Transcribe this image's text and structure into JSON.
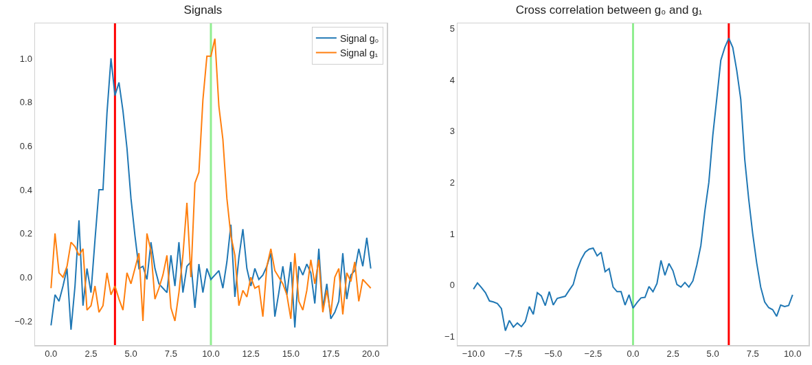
{
  "chart_data": [
    {
      "type": "line",
      "title": "Signals",
      "legend": "top right",
      "grid": false,
      "x": [
        0,
        0.25,
        0.5,
        0.75,
        1,
        1.25,
        1.5,
        1.75,
        2,
        2.25,
        2.5,
        2.75,
        3,
        3.25,
        3.5,
        3.75,
        4,
        4.25,
        4.5,
        4.75,
        5,
        5.25,
        5.5,
        5.75,
        6,
        6.25,
        6.5,
        6.75,
        7,
        7.25,
        7.5,
        7.75,
        8,
        8.25,
        8.5,
        8.75,
        9,
        9.25,
        9.5,
        9.75,
        10,
        10.25,
        10.5,
        10.75,
        11,
        11.25,
        11.5,
        11.75,
        12,
        12.25,
        12.5,
        12.75,
        13,
        13.25,
        13.5,
        13.75,
        14,
        14.25,
        14.5,
        14.75,
        15,
        15.25,
        15.5,
        15.75,
        16,
        16.25,
        16.5,
        16.75,
        17,
        17.25,
        17.5,
        17.75,
        18,
        18.25,
        18.5,
        18.75,
        19,
        19.25,
        19.5,
        19.75,
        20
      ],
      "series": [
        {
          "name": "Signal g₀",
          "color": "#1f77b4",
          "values": [
            -0.22,
            -0.08,
            -0.11,
            -0.04,
            0.04,
            -0.24,
            -0.04,
            0.26,
            -0.13,
            0.04,
            -0.07,
            0.17,
            0.4,
            0.4,
            0.75,
            1.0,
            0.83,
            0.89,
            0.76,
            0.59,
            0.36,
            0.19,
            0.04,
            0.05,
            -0.01,
            0.16,
            0.04,
            -0.03,
            -0.05,
            -0.07,
            0.1,
            -0.04,
            0.16,
            -0.07,
            0.05,
            0.07,
            -0.14,
            0.06,
            -0.07,
            0.04,
            -0.01,
            0.01,
            0.03,
            -0.05,
            0.07,
            0.24,
            -0.09,
            0.09,
            0.22,
            0.04,
            -0.04,
            0.04,
            -0.01,
            0.01,
            0.05,
            0.11,
            -0.18,
            -0.07,
            0.05,
            -0.08,
            0.07,
            -0.23,
            0.05,
            0.01,
            0.06,
            0.02,
            -0.12,
            0.13,
            -0.14,
            -0.03,
            -0.19,
            -0.16,
            -0.11,
            0.11,
            -0.1,
            0.01,
            0.03,
            0.13,
            0.05,
            0.18,
            0.04
          ]
        },
        {
          "name": "Signal g₁",
          "color": "#ff7f0e",
          "values": [
            -0.05,
            0.2,
            0.02,
            0.0,
            0.05,
            0.16,
            0.14,
            0.1,
            0.13,
            -0.15,
            -0.13,
            -0.04,
            -0.16,
            -0.13,
            0.02,
            -0.08,
            -0.04,
            -0.1,
            -0.15,
            0.02,
            -0.03,
            0.04,
            0.11,
            -0.2,
            0.2,
            0.12,
            -0.1,
            -0.05,
            0.01,
            0.1,
            -0.14,
            -0.2,
            -0.07,
            0.1,
            0.34,
            0.0,
            0.43,
            0.48,
            0.81,
            1.01,
            1.01,
            1.09,
            0.78,
            0.63,
            0.36,
            0.19,
            0.1,
            -0.13,
            -0.06,
            -0.09,
            0.0,
            -0.05,
            -0.04,
            -0.18,
            0.05,
            0.13,
            0.03,
            0.0,
            -0.03,
            -0.08,
            -0.19,
            0.11,
            -0.11,
            -0.15,
            -0.06,
            0.08,
            -0.03,
            0.08,
            -0.16,
            -0.06,
            -0.17,
            0.0,
            0.04,
            -0.17,
            0.02,
            -0.02,
            0.07,
            -0.11,
            -0.01,
            -0.03,
            -0.05
          ]
        }
      ],
      "xlim": [
        -1,
        21
      ],
      "xticks": [
        {
          "value": 0,
          "label": "0.0"
        },
        {
          "value": 2.5,
          "label": "2.5"
        },
        {
          "value": 5,
          "label": "5.0"
        },
        {
          "value": 7.5,
          "label": "7.5"
        },
        {
          "value": 10,
          "label": "10.0"
        },
        {
          "value": 12.5,
          "label": "12.5"
        },
        {
          "value": 15,
          "label": "15.0"
        },
        {
          "value": 17.5,
          "label": "17.5"
        },
        {
          "value": 20,
          "label": "20.0"
        }
      ],
      "ylim": [
        -0.31,
        1.16
      ],
      "yticks": [
        {
          "value": -0.2,
          "label": "−0.2"
        },
        {
          "value": 0,
          "label": "0.0"
        },
        {
          "value": 0.2,
          "label": "0.2"
        },
        {
          "value": 0.4,
          "label": "0.4"
        },
        {
          "value": 0.6,
          "label": "0.6"
        },
        {
          "value": 0.8,
          "label": "0.8"
        },
        {
          "value": 1,
          "label": "1.0"
        }
      ],
      "ref_lines": [
        {
          "axis": "x",
          "value": 4,
          "color": "#ff0000"
        },
        {
          "axis": "x",
          "value": 10,
          "color": "#90ee90"
        }
      ]
    },
    {
      "type": "line",
      "title": "Cross correlation between g₀ and g₁",
      "legend": false,
      "grid": false,
      "x": [
        -10,
        -9.75,
        -9.5,
        -9.25,
        -9,
        -8.75,
        -8.5,
        -8.25,
        -8,
        -7.75,
        -7.5,
        -7.25,
        -7,
        -6.75,
        -6.5,
        -6.25,
        -6,
        -5.75,
        -5.5,
        -5.25,
        -5,
        -4.75,
        -4.5,
        -4.25,
        -4,
        -3.75,
        -3.5,
        -3.25,
        -3,
        -2.75,
        -2.5,
        -2.25,
        -2,
        -1.75,
        -1.5,
        -1.25,
        -1,
        -0.75,
        -0.5,
        -0.25,
        0,
        0.25,
        0.5,
        0.75,
        1,
        1.25,
        1.5,
        1.75,
        2,
        2.25,
        2.5,
        2.75,
        3,
        3.25,
        3.5,
        3.75,
        4,
        4.25,
        4.5,
        4.75,
        5,
        5.25,
        5.5,
        5.75,
        6,
        6.25,
        6.5,
        6.75,
        7,
        7.25,
        7.5,
        7.75,
        8,
        8.25,
        8.5,
        8.75,
        9,
        9.25,
        9.5,
        9.75,
        10
      ],
      "series": [
        {
          "color": "#1f77b4",
          "values": [
            -0.08,
            0.04,
            -0.05,
            -0.15,
            -0.31,
            -0.33,
            -0.36,
            -0.46,
            -0.89,
            -0.69,
            -0.82,
            -0.74,
            -0.81,
            -0.71,
            -0.42,
            -0.57,
            -0.15,
            -0.21,
            -0.4,
            -0.13,
            -0.39,
            -0.26,
            -0.24,
            -0.22,
            -0.1,
            0.01,
            0.3,
            0.5,
            0.64,
            0.7,
            0.72,
            0.57,
            0.64,
            0.26,
            0.32,
            -0.04,
            -0.13,
            -0.13,
            -0.39,
            -0.19,
            -0.45,
            -0.34,
            -0.25,
            -0.24,
            -0.03,
            -0.13,
            0.03,
            0.48,
            0.19,
            0.42,
            0.28,
            0.01,
            -0.04,
            0.05,
            -0.04,
            0.08,
            0.39,
            0.77,
            1.44,
            2.0,
            2.92,
            3.64,
            4.38,
            4.63,
            4.81,
            4.63,
            4.18,
            3.62,
            2.45,
            1.67,
            1.0,
            0.43,
            -0.04,
            -0.33,
            -0.44,
            -0.48,
            -0.61,
            -0.39,
            -0.42,
            -0.4,
            -0.19
          ]
        }
      ],
      "xlim": [
        -11,
        11
      ],
      "xticks": [
        {
          "value": -10,
          "label": "−10.0"
        },
        {
          "value": -7.5,
          "label": "−7.5"
        },
        {
          "value": -5,
          "label": "−5.0"
        },
        {
          "value": -2.5,
          "label": "−2.5"
        },
        {
          "value": 0,
          "label": "0.0"
        },
        {
          "value": 2.5,
          "label": "2.5"
        },
        {
          "value": 5,
          "label": "5.0"
        },
        {
          "value": 7.5,
          "label": "7.5"
        },
        {
          "value": 10,
          "label": "10.0"
        }
      ],
      "ylim": [
        -1.17,
        5.1
      ],
      "yticks": [
        {
          "value": -1,
          "label": "−1"
        },
        0,
        1,
        2,
        3,
        4,
        5
      ],
      "ref_lines": [
        {
          "axis": "x",
          "value": 0,
          "color": "#90ee90"
        },
        {
          "axis": "x",
          "value": 6,
          "color": "#ff0000"
        }
      ]
    }
  ]
}
